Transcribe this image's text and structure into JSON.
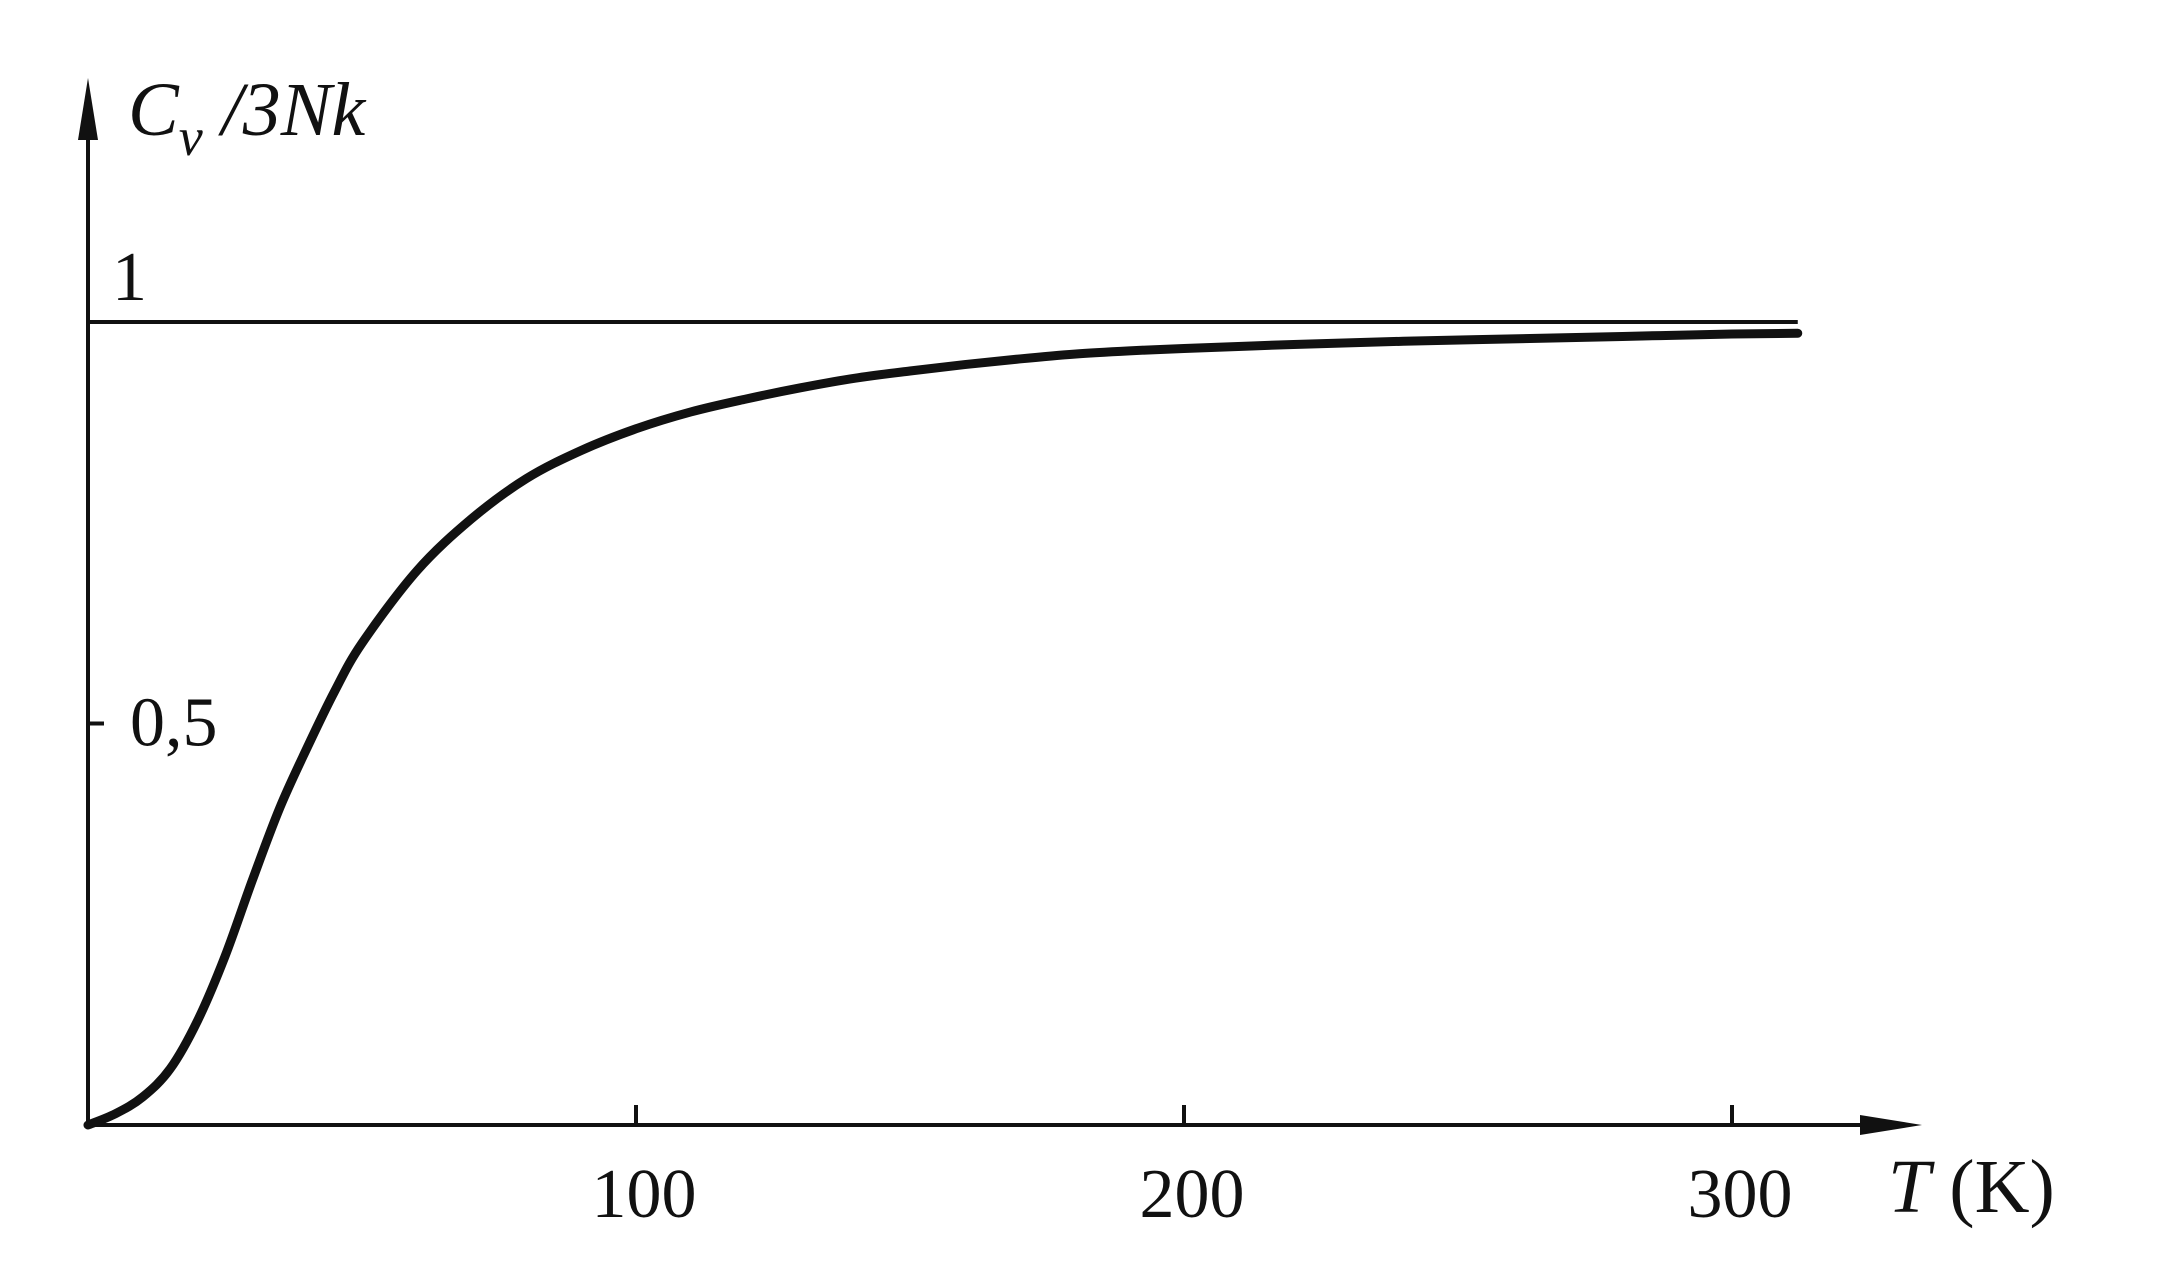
{
  "chart_data": {
    "type": "line",
    "ylabel": {
      "prefix": "C",
      "subscript": "v",
      "suffix": " /3Nk"
    },
    "xlabel": {
      "symbol": "T",
      "unit": " (K)"
    },
    "xlim": [
      0,
      335
    ],
    "ylim": [
      0,
      1.15
    ],
    "x_ticks": [
      {
        "value": 100,
        "label": "100"
      },
      {
        "value": 200,
        "label": "200"
      },
      {
        "value": 300,
        "label": "300"
      }
    ],
    "y_ticks": [
      {
        "value": 0.5,
        "label": "0,5"
      },
      {
        "value": 1,
        "label": "1"
      }
    ],
    "reference_line": {
      "y": 1,
      "x_end": 312
    },
    "series": [
      {
        "color": "#111111",
        "x": [
          0,
          5,
          10,
          15,
          20,
          25,
          30,
          35,
          40,
          45,
          50,
          60,
          70,
          80,
          90,
          100,
          110,
          120,
          130,
          140,
          150,
          160,
          170,
          180,
          190,
          200,
          220,
          240,
          260,
          280,
          300,
          312
        ],
        "y": [
          0.0,
          0.014,
          0.035,
          0.07,
          0.13,
          0.21,
          0.305,
          0.395,
          0.47,
          0.54,
          0.6,
          0.69,
          0.755,
          0.805,
          0.84,
          0.867,
          0.888,
          0.904,
          0.918,
          0.93,
          0.939,
          0.947,
          0.954,
          0.96,
          0.964,
          0.967,
          0.972,
          0.976,
          0.979,
          0.982,
          0.985,
          0.986
        ]
      }
    ],
    "grid": false
  }
}
